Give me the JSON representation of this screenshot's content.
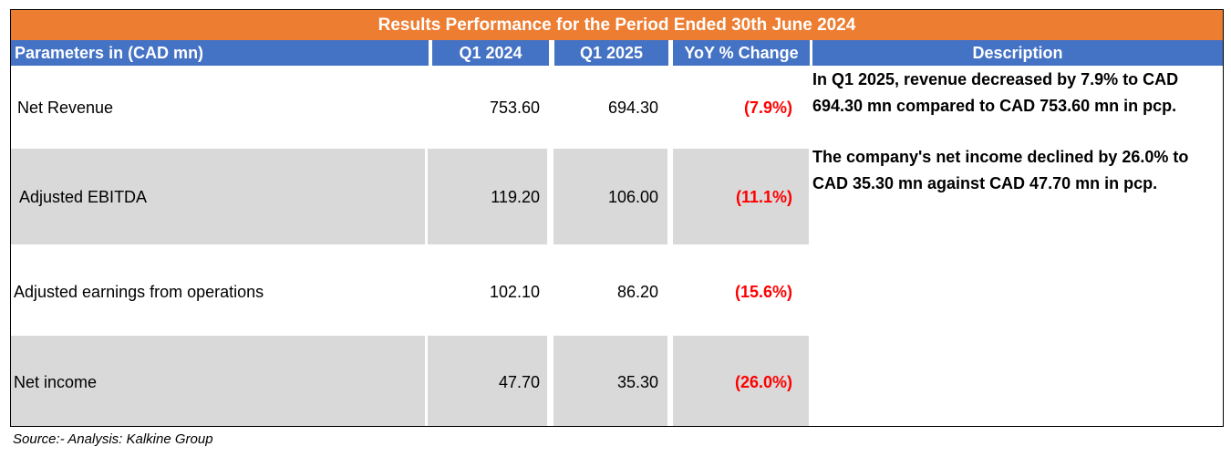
{
  "chart_data": {
    "type": "table",
    "title": "Results Performance for the Period Ended 30th June 2024",
    "columns": [
      "Parameters in (CAD mn)",
      "Q1 2024",
      "Q1 2025",
      "YoY % Change",
      "Description"
    ],
    "rows": [
      {
        "parameter": "Net Revenue",
        "q1_2024": "753.60",
        "q1_2025": "694.30",
        "yoy": "(7.9%)"
      },
      {
        "parameter": "Adjusted EBITDA",
        "q1_2024": "119.20",
        "q1_2025": "106.00",
        "yoy": "(11.1%)"
      },
      {
        "parameter": "Adjusted earnings from operations",
        "q1_2024": "102.10",
        "q1_2025": "86.20",
        "yoy": "(15.6%)"
      },
      {
        "parameter": "Net income",
        "q1_2024": "47.70",
        "q1_2025": "35.30",
        "yoy": "(26.0%)"
      }
    ],
    "descriptions": [
      "In Q1 2025, revenue decreased by 7.9% to CAD 694.30 mn compared to CAD 753.60 mn in pcp.",
      "The company's net income declined by 26.0% to CAD 35.30 mn against CAD 47.70 mn in pcp."
    ],
    "source": "Source:- Analysis: Kalkine Group"
  },
  "colors": {
    "title_bg": "#ED7D31",
    "header_bg": "#4472C4",
    "band_bg": "#D9D9D9",
    "negative_text": "#FF0000"
  }
}
